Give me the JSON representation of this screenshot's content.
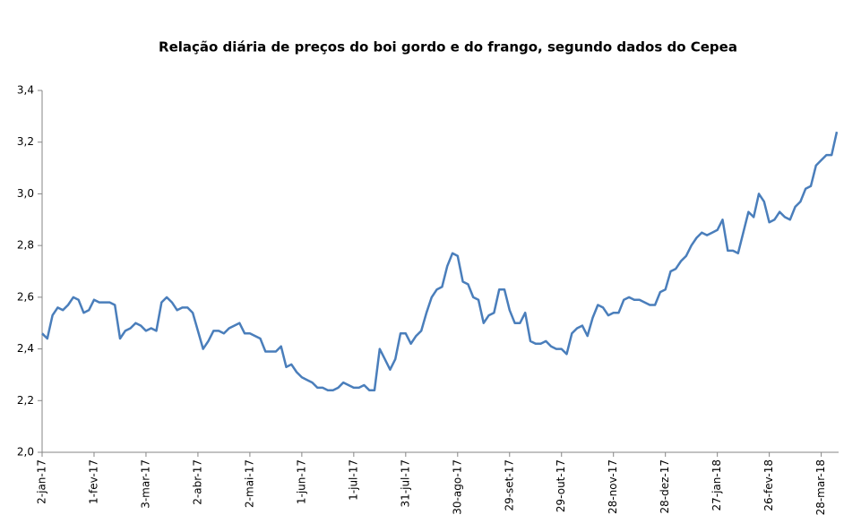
{
  "chart_data": {
    "type": "line",
    "title": "Relação diária de preços do boi gordo e do frango, segundo dados do Cepea",
    "color": "#4a7ebb",
    "categories": [
      "2-jan-17",
      null,
      null,
      null,
      null,
      null,
      null,
      null,
      null,
      null,
      "1-fev-17",
      null,
      null,
      null,
      null,
      null,
      null,
      null,
      null,
      null,
      "3-mar-17",
      null,
      null,
      null,
      null,
      null,
      null,
      null,
      null,
      null,
      "2-abr-17",
      null,
      null,
      null,
      null,
      null,
      null,
      null,
      null,
      null,
      "2-mai-17",
      null,
      null,
      null,
      null,
      null,
      null,
      null,
      null,
      null,
      "1-jun-17",
      null,
      null,
      null,
      null,
      null,
      null,
      null,
      null,
      null,
      "1-jul-17",
      null,
      null,
      null,
      null,
      null,
      null,
      null,
      null,
      null,
      "31-jul-17",
      null,
      null,
      null,
      null,
      null,
      null,
      null,
      null,
      null,
      "30-ago-17",
      null,
      null,
      null,
      null,
      null,
      null,
      null,
      null,
      null,
      "29-set-17",
      null,
      null,
      null,
      null,
      null,
      null,
      null,
      null,
      null,
      "29-out-17",
      null,
      null,
      null,
      null,
      null,
      null,
      null,
      null,
      null,
      "28-nov-17",
      null,
      null,
      null,
      null,
      null,
      null,
      null,
      null,
      null,
      "28-dez-17",
      null,
      null,
      null,
      null,
      null,
      null,
      null,
      null,
      null,
      "27-jan-18",
      null,
      null,
      null,
      null,
      null,
      null,
      null,
      null,
      null,
      "26-fev-18",
      null,
      null,
      null,
      null,
      null,
      null,
      null,
      null,
      null,
      "28-mar-18",
      null,
      null,
      null
    ],
    "values": [
      2.46,
      2.44,
      2.53,
      2.56,
      2.55,
      2.57,
      2.6,
      2.59,
      2.54,
      2.55,
      2.59,
      2.58,
      2.58,
      2.58,
      2.57,
      2.44,
      2.47,
      2.48,
      2.5,
      2.49,
      2.47,
      2.48,
      2.47,
      2.58,
      2.6,
      2.58,
      2.55,
      2.56,
      2.56,
      2.54,
      2.47,
      2.4,
      2.43,
      2.47,
      2.47,
      2.46,
      2.48,
      2.49,
      2.5,
      2.46,
      2.46,
      2.45,
      2.44,
      2.39,
      2.39,
      2.39,
      2.41,
      2.33,
      2.34,
      2.31,
      2.29,
      2.28,
      2.27,
      2.25,
      2.25,
      2.24,
      2.24,
      2.25,
      2.27,
      2.26,
      2.25,
      2.25,
      2.26,
      2.24,
      2.24,
      2.4,
      2.36,
      2.32,
      2.36,
      2.46,
      2.46,
      2.42,
      2.45,
      2.47,
      2.54,
      2.6,
      2.63,
      2.64,
      2.72,
      2.77,
      2.76,
      2.66,
      2.65,
      2.6,
      2.59,
      2.5,
      2.53,
      2.54,
      2.63,
      2.63,
      2.55,
      2.5,
      2.5,
      2.54,
      2.43,
      2.42,
      2.42,
      2.43,
      2.41,
      2.4,
      2.4,
      2.38,
      2.46,
      2.48,
      2.49,
      2.45,
      2.52,
      2.57,
      2.56,
      2.53,
      2.54,
      2.54,
      2.59,
      2.6,
      2.59,
      2.59,
      2.58,
      2.57,
      2.57,
      2.62,
      2.63,
      2.7,
      2.71,
      2.74,
      2.76,
      2.8,
      2.83,
      2.85,
      2.84,
      2.85,
      2.86,
      2.9,
      2.78,
      2.78,
      2.77,
      2.85,
      2.93,
      2.91,
      3.0,
      2.97,
      2.89,
      2.9,
      2.93,
      2.91,
      2.9,
      2.95,
      2.97,
      3.02,
      3.03,
      3.11,
      3.13,
      3.15,
      3.15,
      3.24
    ],
    "ylim": [
      2.0,
      3.4
    ],
    "yticks": [
      {
        "value": 2.0,
        "label": "2,0"
      },
      {
        "value": 2.2,
        "label": "2,2"
      },
      {
        "value": 2.4,
        "label": "2,4"
      },
      {
        "value": 2.6,
        "label": "2,6"
      },
      {
        "value": 2.8,
        "label": "2,8"
      },
      {
        "value": 3.0,
        "label": "3,0"
      },
      {
        "value": 3.2,
        "label": "3,2"
      },
      {
        "value": 3.4,
        "label": "3,4"
      }
    ],
    "grid": false
  }
}
